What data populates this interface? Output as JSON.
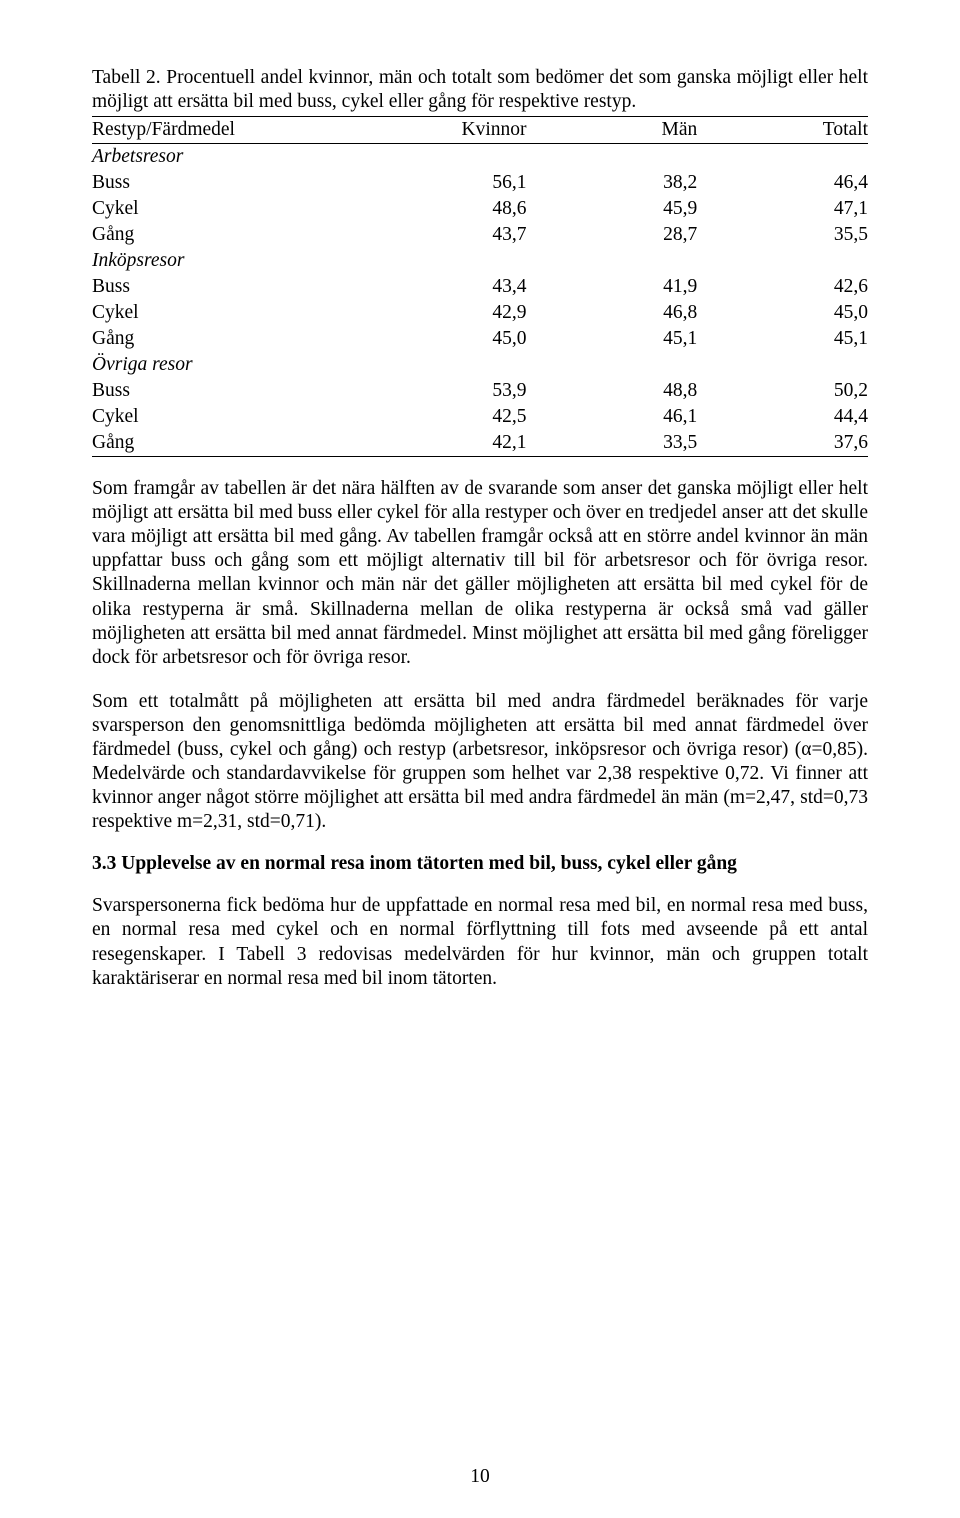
{
  "caption": "Tabell 2. Procentuell andel kvinnor, män och totalt som bedömer det som ganska möjligt eller helt möjligt att ersätta bil med buss, cykel eller gång för respektive restyp.",
  "table": {
    "headers": [
      "Restyp/Färdmedel",
      "Kvinnor",
      "Män",
      "Totalt"
    ],
    "sections": [
      {
        "title": "Arbetsresor",
        "rows": [
          {
            "label": "Buss",
            "vals": [
              "56,1",
              "38,2",
              "46,4"
            ]
          },
          {
            "label": "Cykel",
            "vals": [
              "48,6",
              "45,9",
              "47,1"
            ]
          },
          {
            "label": "Gång",
            "vals": [
              "43,7",
              "28,7",
              "35,5"
            ]
          }
        ]
      },
      {
        "title": "Inköpsresor",
        "rows": [
          {
            "label": "Buss",
            "vals": [
              "43,4",
              "41,9",
              "42,6"
            ]
          },
          {
            "label": "Cykel",
            "vals": [
              "42,9",
              "46,8",
              "45,0"
            ]
          },
          {
            "label": "Gång",
            "vals": [
              "45,0",
              "45,1",
              "45,1"
            ]
          }
        ]
      },
      {
        "title": "Övriga resor",
        "rows": [
          {
            "label": "Buss",
            "vals": [
              "53,9",
              "48,8",
              "50,2"
            ]
          },
          {
            "label": "Cykel",
            "vals": [
              "42,5",
              "46,1",
              "44,4"
            ]
          },
          {
            "label": "Gång",
            "vals": [
              "42,1",
              "33,5",
              "37,6"
            ]
          }
        ]
      }
    ]
  },
  "para1": "Som framgår av tabellen är det nära hälften av de svarande som anser det ganska möjligt eller helt möjligt att ersätta bil med buss eller cykel för alla restyper och över en tredjedel anser att det skulle vara möjligt att ersätta bil med gång. Av tabellen framgår också att en större andel kvinnor än män uppfattar buss och gång som ett möjligt alternativ till bil för arbetsresor och för övriga resor. Skillnaderna mellan kvinnor och män när det gäller möjligheten att ersätta bil med cykel för de olika restyperna är små. Skillnaderna mellan de olika restyperna är också små vad gäller möjligheten att ersätta bil med annat färdmedel. Minst möjlighet att ersätta bil med gång föreligger dock för arbetsresor och för övriga resor.",
  "para2": "Som ett totalmått på möjligheten att ersätta bil med andra färdmedel beräknades för varje svarsperson den genomsnittliga bedömda möjligheten att ersätta bil med annat färdmedel över färdmedel (buss, cykel och gång) och restyp (arbetsresor, inköpsresor och övriga resor) (α=0,85). Medelvärde och standardavvikelse för gruppen som helhet var 2,38 respektive 0,72. Vi finner att kvinnor anger något större möjlighet att ersätta bil med andra färdmedel än män (m=2,47, std=0,73 respektive m=2,31, std=0,71).",
  "heading": "3.3 Upplevelse av en normal resa inom tätorten med bil, buss, cykel eller gång",
  "para3": "Svarspersonerna fick bedöma hur de uppfattade en normal resa med bil, en normal resa med buss, en normal resa med cykel och en normal förflyttning till fots med avseende på ett antal resegenskaper. I Tabell 3 redovisas medelvärden för hur kvinnor, män och gruppen totalt karaktäriserar en normal resa med bil inom tätorten.",
  "pageNumber": "10"
}
